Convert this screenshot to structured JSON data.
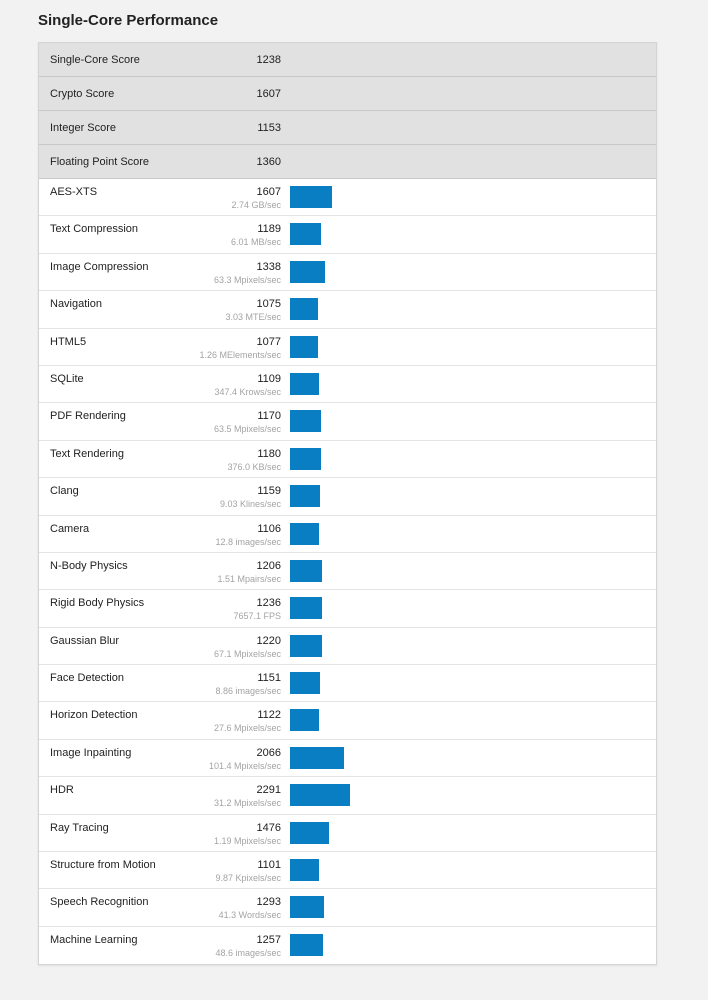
{
  "section_title": "Single-Core Performance",
  "colors": {
    "bar": "#0a7ec2",
    "summary_bg": "#e1e1e1",
    "page_bg": "#f2f2f2"
  },
  "summary": [
    {
      "name": "Single-Core Score",
      "score": "1238"
    },
    {
      "name": "Crypto Score",
      "score": "1607"
    },
    {
      "name": "Integer Score",
      "score": "1153"
    },
    {
      "name": "Floating Point Score",
      "score": "1360"
    }
  ],
  "tests": [
    {
      "name": "AES-XTS",
      "score": "1607",
      "rate": "2.74 GB/sec"
    },
    {
      "name": "Text Compression",
      "score": "1189",
      "rate": "6.01 MB/sec"
    },
    {
      "name": "Image Compression",
      "score": "1338",
      "rate": "63.3 Mpixels/sec"
    },
    {
      "name": "Navigation",
      "score": "1075",
      "rate": "3.03 MTE/sec"
    },
    {
      "name": "HTML5",
      "score": "1077",
      "rate": "1.26 MElements/sec"
    },
    {
      "name": "SQLite",
      "score": "1109",
      "rate": "347.4 Krows/sec"
    },
    {
      "name": "PDF Rendering",
      "score": "1170",
      "rate": "63.5 Mpixels/sec"
    },
    {
      "name": "Text Rendering",
      "score": "1180",
      "rate": "376.0 KB/sec"
    },
    {
      "name": "Clang",
      "score": "1159",
      "rate": "9.03 Klines/sec"
    },
    {
      "name": "Camera",
      "score": "1106",
      "rate": "12.8 images/sec"
    },
    {
      "name": "N-Body Physics",
      "score": "1206",
      "rate": "1.51 Mpairs/sec"
    },
    {
      "name": "Rigid Body Physics",
      "score": "1236",
      "rate": "7657.1 FPS"
    },
    {
      "name": "Gaussian Blur",
      "score": "1220",
      "rate": "67.1 Mpixels/sec"
    },
    {
      "name": "Face Detection",
      "score": "1151",
      "rate": "8.86 images/sec"
    },
    {
      "name": "Horizon Detection",
      "score": "1122",
      "rate": "27.6 Mpixels/sec"
    },
    {
      "name": "Image Inpainting",
      "score": "2066",
      "rate": "101.4 Mpixels/sec"
    },
    {
      "name": "HDR",
      "score": "2291",
      "rate": "31.2 Mpixels/sec"
    },
    {
      "name": "Ray Tracing",
      "score": "1476",
      "rate": "1.19 Mpixels/sec"
    },
    {
      "name": "Structure from Motion",
      "score": "1101",
      "rate": "9.87 Kpixels/sec"
    },
    {
      "name": "Speech Recognition",
      "score": "1293",
      "rate": "41.3 Words/sec"
    },
    {
      "name": "Machine Learning",
      "score": "1257",
      "rate": "48.6 images/sec"
    }
  ]
}
